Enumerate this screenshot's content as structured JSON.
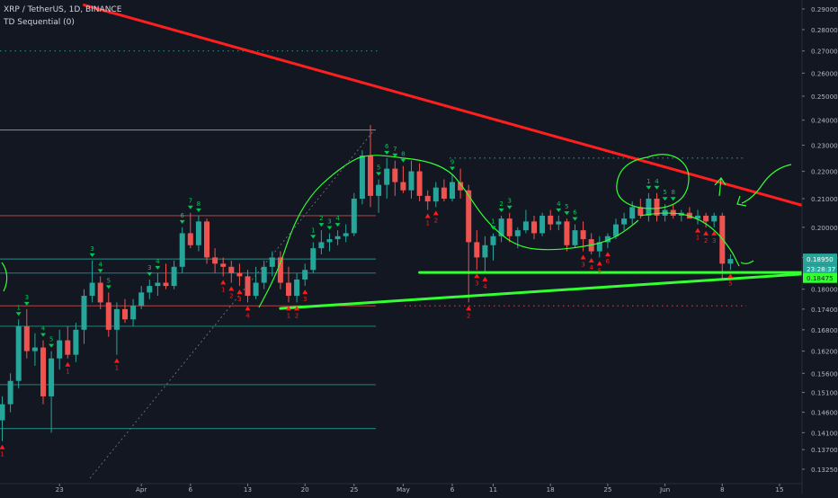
{
  "header": {
    "symbol_line": "XRP / TetherUS, 1D, BINANCE",
    "indicator_line": "TD Sequential (0)"
  },
  "colors": {
    "background": "#131722",
    "up": "#26a69a",
    "down": "#ef5350",
    "trendline_red": "#ff1f1f",
    "trendline_green": "#33ff33",
    "label_green": "#00c853",
    "label_red": "#ff1a1a"
  },
  "chart_data": {
    "type": "candlestick",
    "symbol": "XRP / TetherUS",
    "timeframe": "1D",
    "exchange": "BINANCE",
    "y_axis": {
      "scale": "log",
      "range": [
        0.13,
        0.29
      ],
      "ticks": [
        "0.29000",
        "0.28000",
        "0.27000",
        "0.26000",
        "0.25000",
        "0.24000",
        "0.23000",
        "0.22000",
        "0.21000",
        "0.20000",
        "0.19000",
        "0.18000",
        "0.17400",
        "0.16800",
        "0.16200",
        "0.15600",
        "0.15100",
        "0.14600",
        "0.14100",
        "0.13700",
        "0.13250"
      ]
    },
    "x_axis": {
      "ticks": [
        {
          "label": "23",
          "index": 7
        },
        {
          "label": "Apr",
          "index": 17
        },
        {
          "label": "6",
          "index": 23
        },
        {
          "label": "13",
          "index": 30
        },
        {
          "label": "20",
          "index": 37
        },
        {
          "label": "25",
          "index": 43
        },
        {
          "label": "May",
          "index": 49
        },
        {
          "label": "6",
          "index": 55
        },
        {
          "label": "11",
          "index": 60
        },
        {
          "label": "18",
          "index": 67
        },
        {
          "label": "25",
          "index": 74
        },
        {
          "label": "Jun",
          "index": 81
        },
        {
          "label": "8",
          "index": 88
        },
        {
          "label": "15",
          "index": 95
        }
      ]
    },
    "price_labels": {
      "last_price": "0.18950",
      "countdown": "23:28:37",
      "green_level": "0.18475"
    },
    "candles": [
      {
        "o": 0.144,
        "h": 0.15,
        "l": 0.139,
        "c": 0.148
      },
      {
        "o": 0.148,
        "h": 0.156,
        "l": 0.146,
        "c": 0.154
      },
      {
        "o": 0.154,
        "h": 0.171,
        "l": 0.152,
        "c": 0.169
      },
      {
        "o": 0.169,
        "h": 0.174,
        "l": 0.16,
        "c": 0.162
      },
      {
        "o": 0.162,
        "h": 0.167,
        "l": 0.158,
        "c": 0.163
      },
      {
        "o": 0.163,
        "h": 0.165,
        "l": 0.148,
        "c": 0.15
      },
      {
        "o": 0.15,
        "h": 0.162,
        "l": 0.141,
        "c": 0.16
      },
      {
        "o": 0.16,
        "h": 0.168,
        "l": 0.157,
        "c": 0.165
      },
      {
        "o": 0.165,
        "h": 0.169,
        "l": 0.16,
        "c": 0.161
      },
      {
        "o": 0.161,
        "h": 0.17,
        "l": 0.159,
        "c": 0.168
      },
      {
        "o": 0.168,
        "h": 0.18,
        "l": 0.164,
        "c": 0.178
      },
      {
        "o": 0.178,
        "h": 0.189,
        "l": 0.176,
        "c": 0.182
      },
      {
        "o": 0.182,
        "h": 0.184,
        "l": 0.174,
        "c": 0.176
      },
      {
        "o": 0.176,
        "h": 0.179,
        "l": 0.166,
        "c": 0.168
      },
      {
        "o": 0.168,
        "h": 0.176,
        "l": 0.161,
        "c": 0.174
      },
      {
        "o": 0.174,
        "h": 0.177,
        "l": 0.17,
        "c": 0.171
      },
      {
        "o": 0.171,
        "h": 0.177,
        "l": 0.169,
        "c": 0.175
      },
      {
        "o": 0.175,
        "h": 0.181,
        "l": 0.174,
        "c": 0.179
      },
      {
        "o": 0.179,
        "h": 0.183,
        "l": 0.177,
        "c": 0.181
      },
      {
        "o": 0.181,
        "h": 0.185,
        "l": 0.178,
        "c": 0.182
      },
      {
        "o": 0.182,
        "h": 0.188,
        "l": 0.18,
        "c": 0.181
      },
      {
        "o": 0.181,
        "h": 0.189,
        "l": 0.18,
        "c": 0.187
      },
      {
        "o": 0.187,
        "h": 0.2,
        "l": 0.185,
        "c": 0.198
      },
      {
        "o": 0.198,
        "h": 0.205,
        "l": 0.193,
        "c": 0.194
      },
      {
        "o": 0.194,
        "h": 0.204,
        "l": 0.192,
        "c": 0.202
      },
      {
        "o": 0.202,
        "h": 0.203,
        "l": 0.188,
        "c": 0.19
      },
      {
        "o": 0.19,
        "h": 0.193,
        "l": 0.185,
        "c": 0.188
      },
      {
        "o": 0.188,
        "h": 0.19,
        "l": 0.184,
        "c": 0.187
      },
      {
        "o": 0.187,
        "h": 0.189,
        "l": 0.182,
        "c": 0.185
      },
      {
        "o": 0.185,
        "h": 0.188,
        "l": 0.181,
        "c": 0.184
      },
      {
        "o": 0.184,
        "h": 0.186,
        "l": 0.176,
        "c": 0.178
      },
      {
        "o": 0.178,
        "h": 0.187,
        "l": 0.177,
        "c": 0.182
      },
      {
        "o": 0.182,
        "h": 0.189,
        "l": 0.18,
        "c": 0.187
      },
      {
        "o": 0.187,
        "h": 0.192,
        "l": 0.184,
        "c": 0.19
      },
      {
        "o": 0.19,
        "h": 0.192,
        "l": 0.18,
        "c": 0.182
      },
      {
        "o": 0.182,
        "h": 0.187,
        "l": 0.176,
        "c": 0.178
      },
      {
        "o": 0.178,
        "h": 0.185,
        "l": 0.176,
        "c": 0.183
      },
      {
        "o": 0.183,
        "h": 0.188,
        "l": 0.181,
        "c": 0.186
      },
      {
        "o": 0.186,
        "h": 0.195,
        "l": 0.185,
        "c": 0.193
      },
      {
        "o": 0.193,
        "h": 0.199,
        "l": 0.191,
        "c": 0.195
      },
      {
        "o": 0.195,
        "h": 0.198,
        "l": 0.192,
        "c": 0.196
      },
      {
        "o": 0.196,
        "h": 0.199,
        "l": 0.194,
        "c": 0.197
      },
      {
        "o": 0.197,
        "h": 0.201,
        "l": 0.195,
        "c": 0.198
      },
      {
        "o": 0.198,
        "h": 0.212,
        "l": 0.197,
        "c": 0.21
      },
      {
        "o": 0.21,
        "h": 0.228,
        "l": 0.208,
        "c": 0.226
      },
      {
        "o": 0.226,
        "h": 0.238,
        "l": 0.207,
        "c": 0.211
      },
      {
        "o": 0.211,
        "h": 0.217,
        "l": 0.205,
        "c": 0.215
      },
      {
        "o": 0.215,
        "h": 0.225,
        "l": 0.21,
        "c": 0.221
      },
      {
        "o": 0.221,
        "h": 0.224,
        "l": 0.211,
        "c": 0.216
      },
      {
        "o": 0.216,
        "h": 0.222,
        "l": 0.212,
        "c": 0.213
      },
      {
        "o": 0.213,
        "h": 0.224,
        "l": 0.21,
        "c": 0.22
      },
      {
        "o": 0.22,
        "h": 0.223,
        "l": 0.209,
        "c": 0.211
      },
      {
        "o": 0.211,
        "h": 0.213,
        "l": 0.206,
        "c": 0.209
      },
      {
        "o": 0.209,
        "h": 0.216,
        "l": 0.207,
        "c": 0.214
      },
      {
        "o": 0.214,
        "h": 0.217,
        "l": 0.209,
        "c": 0.21
      },
      {
        "o": 0.21,
        "h": 0.219,
        "l": 0.209,
        "c": 0.216
      },
      {
        "o": 0.216,
        "h": 0.221,
        "l": 0.21,
        "c": 0.213
      },
      {
        "o": 0.213,
        "h": 0.215,
        "l": 0.176,
        "c": 0.195
      },
      {
        "o": 0.195,
        "h": 0.199,
        "l": 0.186,
        "c": 0.19
      },
      {
        "o": 0.19,
        "h": 0.197,
        "l": 0.185,
        "c": 0.194
      },
      {
        "o": 0.194,
        "h": 0.198,
        "l": 0.189,
        "c": 0.197
      },
      {
        "o": 0.197,
        "h": 0.204,
        "l": 0.195,
        "c": 0.203
      },
      {
        "o": 0.203,
        "h": 0.205,
        "l": 0.195,
        "c": 0.197
      },
      {
        "o": 0.197,
        "h": 0.2,
        "l": 0.193,
        "c": 0.199
      },
      {
        "o": 0.199,
        "h": 0.206,
        "l": 0.198,
        "c": 0.202
      },
      {
        "o": 0.202,
        "h": 0.204,
        "l": 0.196,
        "c": 0.198
      },
      {
        "o": 0.198,
        "h": 0.205,
        "l": 0.197,
        "c": 0.204
      },
      {
        "o": 0.204,
        "h": 0.206,
        "l": 0.199,
        "c": 0.201
      },
      {
        "o": 0.201,
        "h": 0.204,
        "l": 0.199,
        "c": 0.202
      },
      {
        "o": 0.202,
        "h": 0.203,
        "l": 0.192,
        "c": 0.194
      },
      {
        "o": 0.194,
        "h": 0.201,
        "l": 0.193,
        "c": 0.199
      },
      {
        "o": 0.199,
        "h": 0.202,
        "l": 0.192,
        "c": 0.196
      },
      {
        "o": 0.196,
        "h": 0.198,
        "l": 0.191,
        "c": 0.192
      },
      {
        "o": 0.192,
        "h": 0.197,
        "l": 0.19,
        "c": 0.195
      },
      {
        "o": 0.195,
        "h": 0.198,
        "l": 0.193,
        "c": 0.197
      },
      {
        "o": 0.197,
        "h": 0.203,
        "l": 0.196,
        "c": 0.201
      },
      {
        "o": 0.201,
        "h": 0.205,
        "l": 0.199,
        "c": 0.203
      },
      {
        "o": 0.203,
        "h": 0.209,
        "l": 0.201,
        "c": 0.207
      },
      {
        "o": 0.207,
        "h": 0.21,
        "l": 0.203,
        "c": 0.204
      },
      {
        "o": 0.204,
        "h": 0.212,
        "l": 0.202,
        "c": 0.21
      },
      {
        "o": 0.21,
        "h": 0.212,
        "l": 0.202,
        "c": 0.204
      },
      {
        "o": 0.204,
        "h": 0.208,
        "l": 0.202,
        "c": 0.206
      },
      {
        "o": 0.206,
        "h": 0.208,
        "l": 0.203,
        "c": 0.204
      },
      {
        "o": 0.204,
        "h": 0.206,
        "l": 0.202,
        "c": 0.205
      },
      {
        "o": 0.205,
        "h": 0.207,
        "l": 0.203,
        "c": 0.203
      },
      {
        "o": 0.203,
        "h": 0.206,
        "l": 0.201,
        "c": 0.204
      },
      {
        "o": 0.204,
        "h": 0.205,
        "l": 0.2,
        "c": 0.202
      },
      {
        "o": 0.202,
        "h": 0.205,
        "l": 0.2,
        "c": 0.204
      },
      {
        "o": 0.204,
        "h": 0.205,
        "l": 0.183,
        "c": 0.188
      },
      {
        "o": 0.188,
        "h": 0.191,
        "l": 0.186,
        "c": 0.1895
      }
    ],
    "horizontal_lines": [
      {
        "price": 0.236,
        "color": "#b2b5be",
        "style": "solid"
      },
      {
        "price": 0.204,
        "color": "#ef5350",
        "style": "solid"
      },
      {
        "price": 0.1895,
        "color": "#26a69a",
        "style": "solid"
      },
      {
        "price": 0.185,
        "color": "#26a69a",
        "style": "solid"
      },
      {
        "price": 0.175,
        "color": "#ef5350",
        "style": "solid"
      },
      {
        "price": 0.169,
        "color": "#26a69a",
        "style": "solid"
      },
      {
        "price": 0.153,
        "color": "#26a69a",
        "style": "solid"
      },
      {
        "price": 0.142,
        "color": "#26a69a",
        "style": "solid"
      },
      {
        "price": 0.27,
        "color": "#26a69a",
        "style": "dotted"
      },
      {
        "price": 0.225,
        "color": "#26a69a",
        "style": "dotted"
      },
      {
        "price": 0.175,
        "color": "#ef5350",
        "style": "dotted"
      }
    ],
    "trendlines": [
      {
        "color": "red",
        "from": {
          "index": 10,
          "price": 0.292
        },
        "to": {
          "index": 110,
          "price": 0.198
        }
      },
      {
        "color": "green",
        "from": {
          "index": 34,
          "price": 0.1742
        },
        "to": {
          "index": 110,
          "price": 0.1868
        }
      },
      {
        "color": "green",
        "from": {
          "index": 51,
          "price": 0.1852
        },
        "to": {
          "index": 110,
          "price": 0.1852
        }
      }
    ],
    "td_labels": [
      {
        "i": 2,
        "t": "1",
        "pos": "above"
      },
      {
        "i": 3,
        "t": "3",
        "pos": "above"
      },
      {
        "i": 5,
        "t": "4",
        "pos": "above"
      },
      {
        "i": 6,
        "t": "5",
        "pos": "above"
      },
      {
        "i": 11,
        "t": "3",
        "pos": "above"
      },
      {
        "i": 12,
        "t": "4",
        "pos": "above"
      },
      {
        "i": 13,
        "t": "5",
        "pos": "above"
      },
      {
        "i": 18,
        "t": "3",
        "pos": "above"
      },
      {
        "i": 19,
        "t": "4",
        "pos": "above"
      },
      {
        "i": 22,
        "t": "6",
        "pos": "above"
      },
      {
        "i": 23,
        "t": "7",
        "pos": "above"
      },
      {
        "i": 24,
        "t": "8",
        "pos": "above"
      },
      {
        "i": 38,
        "t": "1",
        "pos": "above"
      },
      {
        "i": 39,
        "t": "2",
        "pos": "above"
      },
      {
        "i": 40,
        "t": "3",
        "pos": "above"
      },
      {
        "i": 41,
        "t": "4",
        "pos": "above"
      },
      {
        "i": 46,
        "t": "5",
        "pos": "above"
      },
      {
        "i": 47,
        "t": "6",
        "pos": "above"
      },
      {
        "i": 48,
        "t": "7",
        "pos": "above"
      },
      {
        "i": 49,
        "t": "8",
        "pos": "above"
      },
      {
        "i": 55,
        "t": "9",
        "pos": "above"
      },
      {
        "i": 60,
        "t": "1",
        "pos": "above"
      },
      {
        "i": 61,
        "t": "2",
        "pos": "above"
      },
      {
        "i": 62,
        "t": "3",
        "pos": "above"
      },
      {
        "i": 68,
        "t": "4",
        "pos": "above"
      },
      {
        "i": 69,
        "t": "5",
        "pos": "above"
      },
      {
        "i": 70,
        "t": "6",
        "pos": "above"
      },
      {
        "i": 79,
        "t": "1",
        "pos": "above"
      },
      {
        "i": 80,
        "t": "4",
        "pos": "above"
      },
      {
        "i": 81,
        "t": "5",
        "pos": "above"
      },
      {
        "i": 82,
        "t": "8",
        "pos": "above"
      },
      {
        "i": 0,
        "t": "1",
        "pos": "below"
      },
      {
        "i": 8,
        "t": "1",
        "pos": "below"
      },
      {
        "i": 14,
        "t": "1",
        "pos": "below"
      },
      {
        "i": 27,
        "t": "1",
        "pos": "below"
      },
      {
        "i": 28,
        "t": "2",
        "pos": "below"
      },
      {
        "i": 29,
        "t": "3",
        "pos": "below"
      },
      {
        "i": 30,
        "t": "4",
        "pos": "below"
      },
      {
        "i": 35,
        "t": "1",
        "pos": "below"
      },
      {
        "i": 36,
        "t": "2",
        "pos": "below"
      },
      {
        "i": 37,
        "t": "3",
        "pos": "below"
      },
      {
        "i": 52,
        "t": "1",
        "pos": "below"
      },
      {
        "i": 53,
        "t": "2",
        "pos": "below"
      },
      {
        "i": 57,
        "t": "2",
        "pos": "below"
      },
      {
        "i": 58,
        "t": "3",
        "pos": "below"
      },
      {
        "i": 59,
        "t": "4",
        "pos": "below"
      },
      {
        "i": 71,
        "t": "3",
        "pos": "below"
      },
      {
        "i": 72,
        "t": "4",
        "pos": "below"
      },
      {
        "i": 73,
        "t": "5",
        "pos": "below"
      },
      {
        "i": 74,
        "t": "6",
        "pos": "below"
      },
      {
        "i": 85,
        "t": "1",
        "pos": "below"
      },
      {
        "i": 86,
        "t": "2",
        "pos": "below"
      },
      {
        "i": 87,
        "t": "3",
        "pos": "below"
      },
      {
        "i": 89,
        "t": "5",
        "pos": "below"
      }
    ]
  }
}
